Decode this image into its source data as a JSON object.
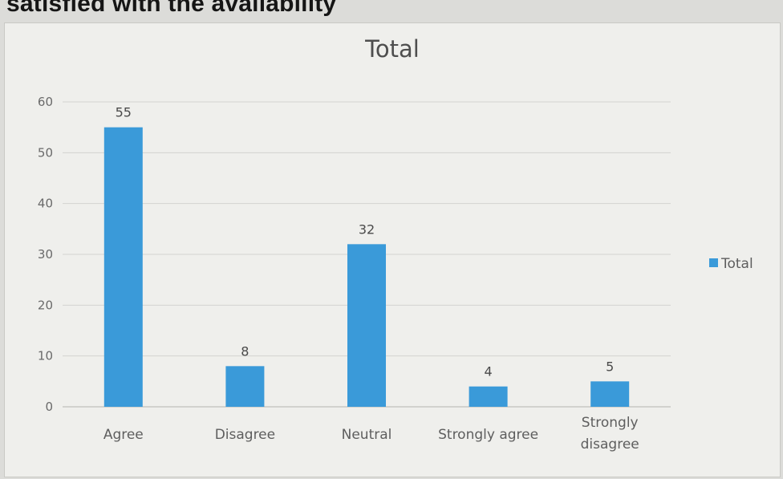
{
  "page": {
    "heading": "satisfied with the availability"
  },
  "chart_data": {
    "type": "bar",
    "title": "Total",
    "categories": [
      "Agree",
      "Disagree",
      "Neutral",
      "Strongly agree",
      "Strongly disagree"
    ],
    "category_lines": [
      [
        "Agree"
      ],
      [
        "Disagree"
      ],
      [
        "Neutral"
      ],
      [
        "Strongly agree"
      ],
      [
        "Strongly",
        "disagree"
      ]
    ],
    "series": [
      {
        "name": "Total",
        "values": [
          55,
          8,
          32,
          4,
          5
        ]
      }
    ],
    "data_labels": [
      "55",
      "8",
      "32",
      "4",
      "5"
    ],
    "ylim": [
      0,
      60
    ],
    "yticks": [
      0,
      10,
      20,
      30,
      40,
      50,
      60
    ],
    "xlabel": "",
    "ylabel": "",
    "grid": true,
    "legend_position": "right",
    "colors": {
      "bar": "#3a9ad9",
      "grid": "#d3d3d0",
      "axis": "#c8c8c4"
    }
  }
}
